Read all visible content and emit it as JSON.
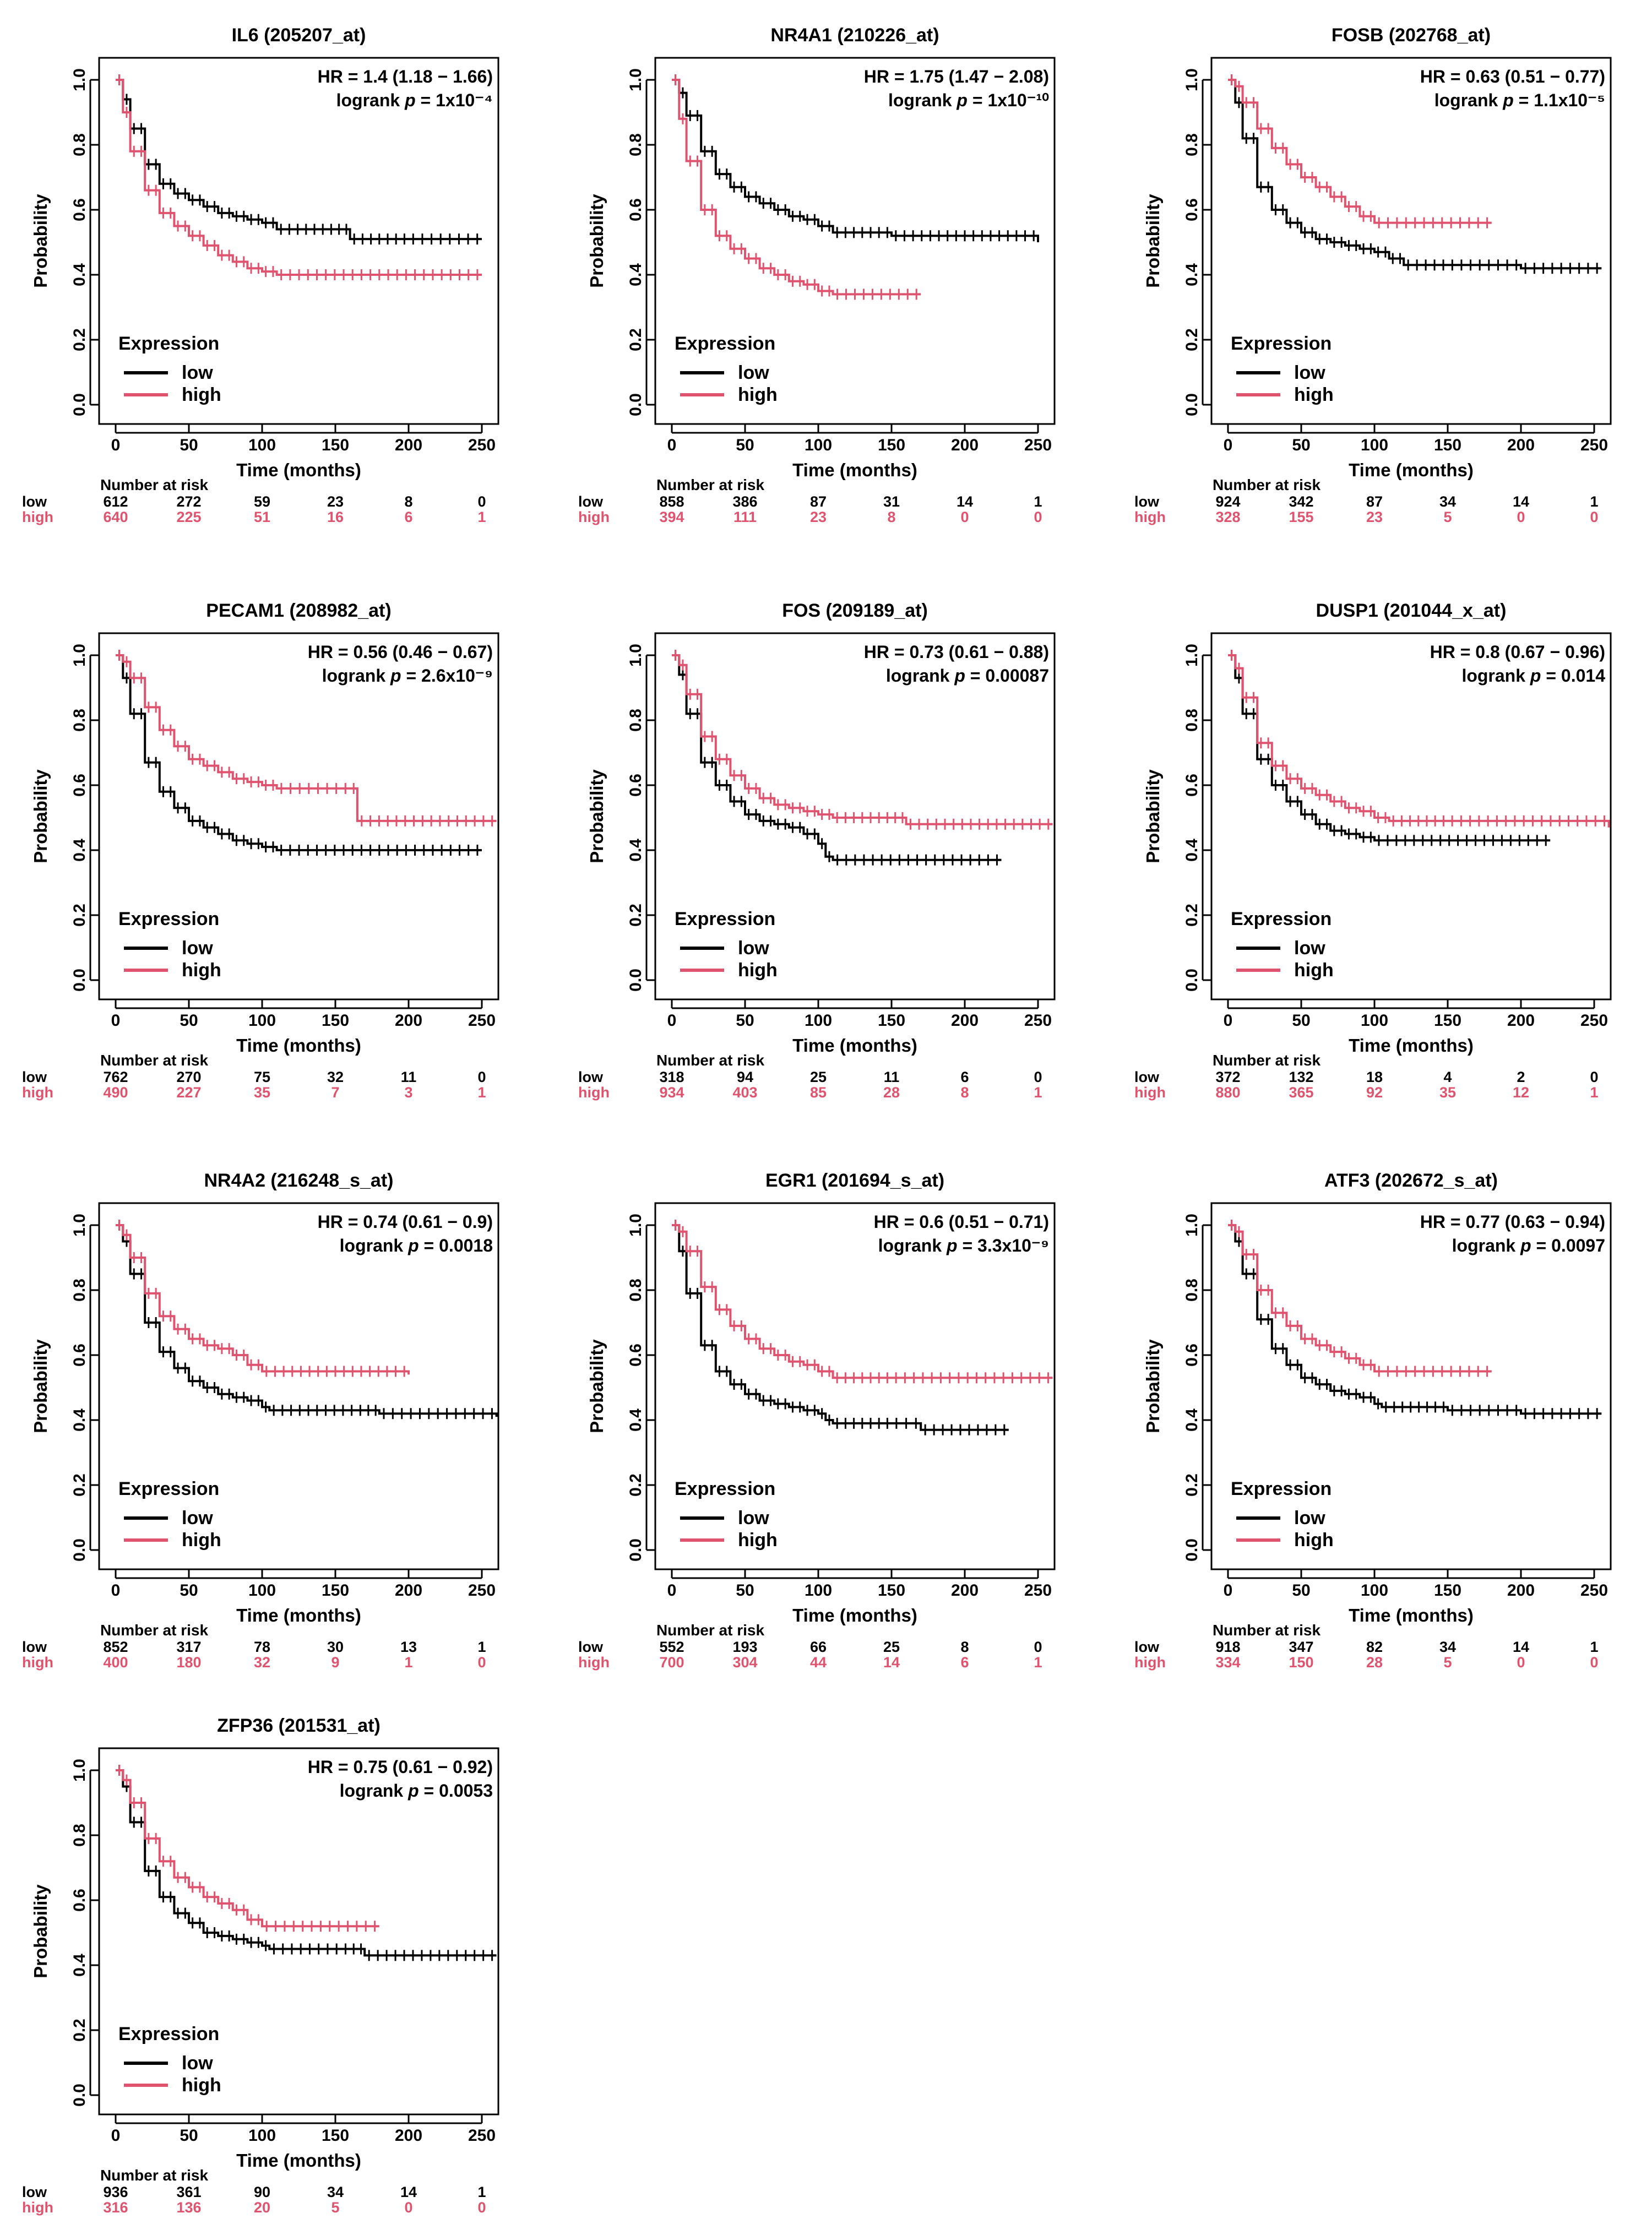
{
  "colors": {
    "low": "#000000",
    "high": "#e0536e"
  },
  "common": {
    "ylabel": "Probability",
    "xlabel": "Time (months)",
    "legend_title": "Expression",
    "legend_low": "low",
    "legend_high": "high",
    "risk_header": "Number at risk",
    "x_ticks": [
      "0",
      "50",
      "100",
      "150",
      "200",
      "250"
    ],
    "y_ticks": [
      "0.0",
      "0.2",
      "0.4",
      "0.6",
      "0.8",
      "1.0"
    ]
  },
  "chart_data": [
    {
      "type": "line",
      "title": "IL6 (205207_at)",
      "hr": "HR = 1.4 (1.18 − 1.66)",
      "logrank_prefix": "logrank ",
      "p_symbol": "p",
      "p_value": " = 1x10⁻⁴",
      "xlim": [
        0,
        260
      ],
      "ylim": [
        0,
        1
      ],
      "series": [
        {
          "name": "low",
          "x": [
            0,
            5,
            10,
            20,
            30,
            40,
            50,
            60,
            70,
            80,
            90,
            100,
            110,
            150,
            160,
            200,
            250
          ],
          "y": [
            1.0,
            0.94,
            0.85,
            0.74,
            0.68,
            0.65,
            0.63,
            0.61,
            0.59,
            0.58,
            0.57,
            0.56,
            0.54,
            0.54,
            0.51,
            0.51,
            0.51
          ]
        },
        {
          "name": "high",
          "x": [
            0,
            5,
            10,
            20,
            30,
            40,
            50,
            60,
            70,
            80,
            90,
            100,
            110,
            250
          ],
          "y": [
            1.0,
            0.9,
            0.78,
            0.66,
            0.59,
            0.55,
            0.52,
            0.49,
            0.46,
            0.44,
            0.42,
            0.41,
            0.4,
            0.4
          ]
        }
      ],
      "risk": {
        "low": [
          "612",
          "272",
          "59",
          "23",
          "8",
          "0"
        ],
        "high": [
          "640",
          "225",
          "51",
          "16",
          "6",
          "1"
        ]
      }
    },
    {
      "type": "line",
      "title": "NR4A1 (210226_at)",
      "hr": "HR = 1.75 (1.47 − 2.08)",
      "logrank_prefix": "logrank ",
      "p_symbol": "p",
      "p_value": " = 1x10⁻¹⁰",
      "xlim": [
        0,
        260
      ],
      "ylim": [
        0,
        1
      ],
      "series": [
        {
          "name": "low",
          "x": [
            0,
            5,
            10,
            20,
            30,
            40,
            50,
            60,
            70,
            80,
            90,
            100,
            110,
            150,
            250
          ],
          "y": [
            1.0,
            0.96,
            0.89,
            0.78,
            0.71,
            0.67,
            0.64,
            0.62,
            0.6,
            0.58,
            0.57,
            0.55,
            0.53,
            0.52,
            0.5
          ]
        },
        {
          "name": "high",
          "x": [
            0,
            5,
            10,
            20,
            30,
            40,
            50,
            60,
            70,
            80,
            90,
            100,
            110,
            170
          ],
          "y": [
            1.0,
            0.88,
            0.75,
            0.6,
            0.52,
            0.48,
            0.45,
            0.42,
            0.4,
            0.38,
            0.37,
            0.35,
            0.34,
            0.34
          ]
        }
      ],
      "risk": {
        "low": [
          "858",
          "386",
          "87",
          "31",
          "14",
          "1"
        ],
        "high": [
          "394",
          "111",
          "23",
          "8",
          "0",
          "0"
        ]
      }
    },
    {
      "type": "line",
      "title": "FOSB (202768_at)",
      "hr": "HR = 0.63 (0.51 − 0.77)",
      "logrank_prefix": "logrank ",
      "p_symbol": "p",
      "p_value": " = 1.1x10⁻⁵",
      "xlim": [
        0,
        260
      ],
      "ylim": [
        0,
        1
      ],
      "series": [
        {
          "name": "low",
          "x": [
            0,
            5,
            10,
            20,
            30,
            40,
            50,
            60,
            70,
            80,
            90,
            100,
            110,
            120,
            150,
            200,
            255
          ],
          "y": [
            1.0,
            0.93,
            0.82,
            0.67,
            0.6,
            0.56,
            0.53,
            0.51,
            0.5,
            0.49,
            0.48,
            0.47,
            0.45,
            0.43,
            0.43,
            0.42,
            0.42
          ]
        },
        {
          "name": "high",
          "x": [
            0,
            5,
            10,
            20,
            30,
            40,
            50,
            60,
            70,
            80,
            90,
            100,
            180
          ],
          "y": [
            1.0,
            0.98,
            0.93,
            0.85,
            0.79,
            0.74,
            0.7,
            0.67,
            0.64,
            0.61,
            0.58,
            0.56,
            0.56
          ]
        }
      ],
      "risk": {
        "low": [
          "924",
          "342",
          "87",
          "34",
          "14",
          "1"
        ],
        "high": [
          "328",
          "155",
          "23",
          "5",
          "0",
          "0"
        ]
      }
    },
    {
      "type": "line",
      "title": "PECAM1 (208982_at)",
      "hr": "HR = 0.56 (0.46 − 0.67)",
      "logrank_prefix": "logrank ",
      "p_symbol": "p",
      "p_value": " = 2.6x10⁻⁹",
      "xlim": [
        0,
        260
      ],
      "ylim": [
        0,
        1
      ],
      "series": [
        {
          "name": "low",
          "x": [
            0,
            5,
            10,
            20,
            30,
            40,
            50,
            60,
            70,
            80,
            90,
            100,
            110,
            250
          ],
          "y": [
            1.0,
            0.93,
            0.82,
            0.67,
            0.58,
            0.53,
            0.49,
            0.47,
            0.45,
            0.43,
            0.42,
            0.41,
            0.4,
            0.4
          ]
        },
        {
          "name": "high",
          "x": [
            0,
            5,
            10,
            20,
            30,
            40,
            50,
            60,
            70,
            80,
            90,
            100,
            110,
            160,
            165,
            260
          ],
          "y": [
            1.0,
            0.98,
            0.93,
            0.84,
            0.77,
            0.72,
            0.68,
            0.66,
            0.64,
            0.62,
            0.61,
            0.6,
            0.59,
            0.59,
            0.49,
            0.49
          ]
        }
      ],
      "risk": {
        "low": [
          "762",
          "270",
          "75",
          "32",
          "11",
          "0"
        ],
        "high": [
          "490",
          "227",
          "35",
          "7",
          "3",
          "1"
        ]
      }
    },
    {
      "type": "line",
      "title": "FOS (209189_at)",
      "hr": "HR = 0.73 (0.61 − 0.88)",
      "logrank_prefix": "logrank ",
      "p_symbol": "p",
      "p_value": " = 0.00087",
      "xlim": [
        0,
        260
      ],
      "ylim": [
        0,
        1
      ],
      "series": [
        {
          "name": "low",
          "x": [
            0,
            5,
            10,
            20,
            30,
            40,
            50,
            60,
            70,
            80,
            90,
            100,
            105,
            110,
            225
          ],
          "y": [
            1.0,
            0.94,
            0.82,
            0.67,
            0.6,
            0.55,
            0.51,
            0.49,
            0.48,
            0.47,
            0.45,
            0.42,
            0.38,
            0.37,
            0.37
          ]
        },
        {
          "name": "high",
          "x": [
            0,
            5,
            10,
            20,
            30,
            40,
            50,
            60,
            70,
            80,
            90,
            100,
            110,
            150,
            160,
            260
          ],
          "y": [
            1.0,
            0.97,
            0.88,
            0.75,
            0.68,
            0.63,
            0.59,
            0.56,
            0.54,
            0.53,
            0.52,
            0.51,
            0.5,
            0.5,
            0.48,
            0.48
          ]
        }
      ],
      "risk": {
        "low": [
          "318",
          "94",
          "25",
          "11",
          "6",
          "0"
        ],
        "high": [
          "934",
          "403",
          "85",
          "28",
          "8",
          "1"
        ]
      }
    },
    {
      "type": "line",
      "title": "DUSP1 (201044_x_at)",
      "hr": "HR = 0.8 (0.67 − 0.96)",
      "logrank_prefix": "logrank ",
      "p_symbol": "p",
      "p_value": " = 0.014",
      "xlim": [
        0,
        260
      ],
      "ylim": [
        0,
        1
      ],
      "series": [
        {
          "name": "low",
          "x": [
            0,
            5,
            10,
            20,
            30,
            40,
            50,
            60,
            70,
            80,
            90,
            100,
            220
          ],
          "y": [
            1.0,
            0.93,
            0.82,
            0.68,
            0.6,
            0.55,
            0.51,
            0.48,
            0.46,
            0.45,
            0.44,
            0.43,
            0.43
          ]
        },
        {
          "name": "high",
          "x": [
            0,
            5,
            10,
            20,
            30,
            40,
            50,
            60,
            70,
            80,
            90,
            100,
            110,
            150,
            260
          ],
          "y": [
            1.0,
            0.96,
            0.87,
            0.73,
            0.66,
            0.62,
            0.59,
            0.57,
            0.55,
            0.53,
            0.52,
            0.5,
            0.49,
            0.49,
            0.47
          ]
        }
      ],
      "risk": {
        "low": [
          "372",
          "132",
          "18",
          "4",
          "2",
          "0"
        ],
        "high": [
          "880",
          "365",
          "92",
          "35",
          "12",
          "1"
        ]
      }
    },
    {
      "type": "line",
      "title": "NR4A2 (216248_s_at)",
      "hr": "HR = 0.74 (0.61 − 0.9)",
      "logrank_prefix": "logrank ",
      "p_symbol": "p",
      "p_value": " = 0.0018",
      "xlim": [
        0,
        260
      ],
      "ylim": [
        0,
        1
      ],
      "series": [
        {
          "name": "low",
          "x": [
            0,
            5,
            10,
            20,
            30,
            40,
            50,
            60,
            70,
            80,
            90,
            100,
            105,
            170,
            180,
            260
          ],
          "y": [
            1.0,
            0.95,
            0.85,
            0.7,
            0.61,
            0.56,
            0.52,
            0.5,
            0.48,
            0.47,
            0.46,
            0.44,
            0.43,
            0.43,
            0.42,
            0.41
          ]
        },
        {
          "name": "high",
          "x": [
            0,
            5,
            10,
            20,
            30,
            40,
            50,
            60,
            70,
            80,
            90,
            100,
            200
          ],
          "y": [
            1.0,
            0.97,
            0.9,
            0.79,
            0.72,
            0.68,
            0.65,
            0.63,
            0.62,
            0.6,
            0.57,
            0.55,
            0.54
          ]
        }
      ],
      "risk": {
        "low": [
          "852",
          "317",
          "78",
          "30",
          "13",
          "1"
        ],
        "high": [
          "400",
          "180",
          "32",
          "9",
          "1",
          "0"
        ]
      }
    },
    {
      "type": "line",
      "title": "EGR1 (201694_s_at)",
      "hr": "HR = 0.6 (0.51 − 0.71)",
      "logrank_prefix": "logrank ",
      "p_symbol": "p",
      "p_value": " = 3.3x10⁻⁹",
      "xlim": [
        0,
        260
      ],
      "ylim": [
        0,
        1
      ],
      "series": [
        {
          "name": "low",
          "x": [
            0,
            5,
            10,
            20,
            30,
            40,
            50,
            60,
            70,
            80,
            90,
            100,
            105,
            110,
            150,
            170,
            230
          ],
          "y": [
            1.0,
            0.92,
            0.79,
            0.63,
            0.55,
            0.51,
            0.48,
            0.46,
            0.45,
            0.44,
            0.43,
            0.42,
            0.4,
            0.39,
            0.39,
            0.37,
            0.37
          ]
        },
        {
          "name": "high",
          "x": [
            0,
            5,
            10,
            20,
            30,
            40,
            50,
            60,
            70,
            80,
            90,
            100,
            110,
            150,
            260
          ],
          "y": [
            1.0,
            0.98,
            0.92,
            0.81,
            0.74,
            0.69,
            0.65,
            0.62,
            0.6,
            0.58,
            0.57,
            0.55,
            0.53,
            0.53,
            0.53
          ]
        }
      ],
      "risk": {
        "low": [
          "552",
          "193",
          "66",
          "25",
          "8",
          "0"
        ],
        "high": [
          "700",
          "304",
          "44",
          "14",
          "6",
          "1"
        ]
      }
    },
    {
      "type": "line",
      "title": "ATF3 (202672_s_at)",
      "hr": "HR = 0.77 (0.63 − 0.94)",
      "logrank_prefix": "logrank ",
      "p_symbol": "p",
      "p_value": " = 0.0097",
      "xlim": [
        0,
        260
      ],
      "ylim": [
        0,
        1
      ],
      "series": [
        {
          "name": "low",
          "x": [
            0,
            5,
            10,
            20,
            30,
            40,
            50,
            60,
            70,
            80,
            90,
            100,
            105,
            150,
            200,
            255
          ],
          "y": [
            1.0,
            0.95,
            0.85,
            0.71,
            0.62,
            0.57,
            0.53,
            0.51,
            0.49,
            0.48,
            0.47,
            0.45,
            0.44,
            0.43,
            0.42,
            0.42
          ]
        },
        {
          "name": "high",
          "x": [
            0,
            5,
            10,
            20,
            30,
            40,
            50,
            60,
            70,
            80,
            90,
            100,
            180
          ],
          "y": [
            1.0,
            0.98,
            0.91,
            0.8,
            0.73,
            0.69,
            0.65,
            0.63,
            0.61,
            0.59,
            0.57,
            0.55,
            0.55
          ]
        }
      ],
      "risk": {
        "low": [
          "918",
          "347",
          "82",
          "34",
          "14",
          "1"
        ],
        "high": [
          "334",
          "150",
          "28",
          "5",
          "0",
          "0"
        ]
      }
    },
    {
      "type": "line",
      "title": "ZFP36 (201531_at)",
      "hr": "HR = 0.75 (0.61 − 0.92)",
      "logrank_prefix": "logrank ",
      "p_symbol": "p",
      "p_value": " = 0.0053",
      "xlim": [
        0,
        260
      ],
      "ylim": [
        0,
        1
      ],
      "series": [
        {
          "name": "low",
          "x": [
            0,
            5,
            10,
            20,
            30,
            40,
            50,
            60,
            70,
            80,
            90,
            100,
            105,
            160,
            170,
            260
          ],
          "y": [
            1.0,
            0.95,
            0.84,
            0.69,
            0.61,
            0.56,
            0.53,
            0.5,
            0.49,
            0.48,
            0.47,
            0.46,
            0.45,
            0.45,
            0.43,
            0.43
          ]
        },
        {
          "name": "high",
          "x": [
            0,
            5,
            10,
            20,
            30,
            40,
            50,
            60,
            70,
            80,
            90,
            100,
            180
          ],
          "y": [
            1.0,
            0.97,
            0.9,
            0.79,
            0.72,
            0.67,
            0.64,
            0.61,
            0.59,
            0.57,
            0.54,
            0.52,
            0.52
          ]
        }
      ],
      "risk": {
        "low": [
          "936",
          "361",
          "90",
          "34",
          "14",
          "1"
        ],
        "high": [
          "316",
          "136",
          "20",
          "5",
          "0",
          "0"
        ]
      }
    }
  ]
}
